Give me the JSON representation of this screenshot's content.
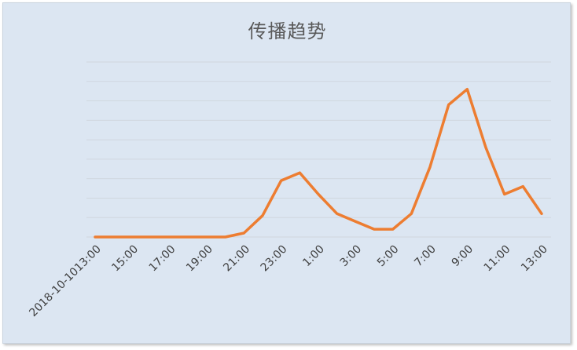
{
  "chart_data": {
    "type": "line",
    "title": "传播趋势",
    "xlabel": "",
    "ylabel": "",
    "grid": true,
    "legend": "none",
    "tick_labels": [
      "2018-10-1013:00",
      "15:00",
      "17:00",
      "19:00",
      "21:00",
      "23:00",
      "1:00",
      "3:00",
      "5:00",
      "7:00",
      "9:00",
      "11:00",
      "13:00"
    ],
    "x": [
      "13:00",
      "14:00",
      "15:00",
      "16:00",
      "17:00",
      "18:00",
      "19:00",
      "20:00",
      "21:00",
      "22:00",
      "23:00",
      "0:00",
      "1:00",
      "2:00",
      "3:00",
      "4:00",
      "5:00",
      "6:00",
      "7:00",
      "8:00",
      "9:00",
      "10:00",
      "11:00",
      "12:00",
      "13:00"
    ],
    "series": [
      {
        "values": [
          0,
          0,
          0,
          0,
          0,
          0,
          0,
          0,
          0.2,
          1.1,
          2.9,
          3.3,
          2.2,
          1.2,
          0.8,
          0.4,
          0.4,
          1.2,
          3.6,
          6.8,
          7.6,
          4.6,
          2.2,
          2.6,
          1.2
        ],
        "color": "#ed7d31"
      }
    ],
    "ylim": [
      0,
      9
    ],
    "gridline_color": "#d0d7df",
    "background_color": "#dce6f2"
  }
}
